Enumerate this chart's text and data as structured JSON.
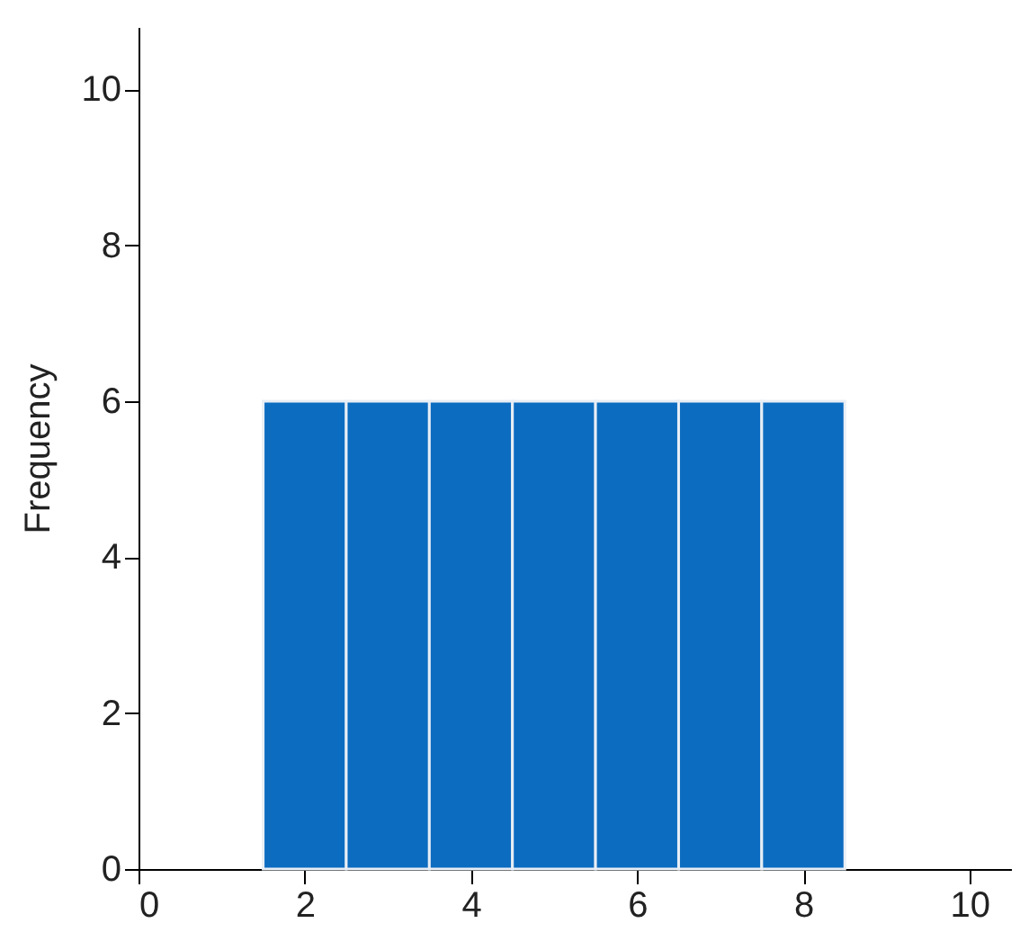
{
  "chart_data": {
    "type": "histogram",
    "ylabel": "Frequency",
    "bins": [
      1.5,
      2.5,
      3.5,
      4.5,
      5.5,
      6.5,
      7.5,
      8.5
    ],
    "values": [
      6,
      6,
      6,
      6,
      6,
      6,
      6
    ],
    "color": "#0c6cc0",
    "xlim": [
      0,
      10.5
    ],
    "xticks": [
      0,
      2,
      4,
      6,
      8,
      10
    ],
    "ylim": [
      0,
      10.8
    ],
    "yticks": [
      0,
      2,
      4,
      6,
      8,
      10
    ],
    "grid": false
  }
}
